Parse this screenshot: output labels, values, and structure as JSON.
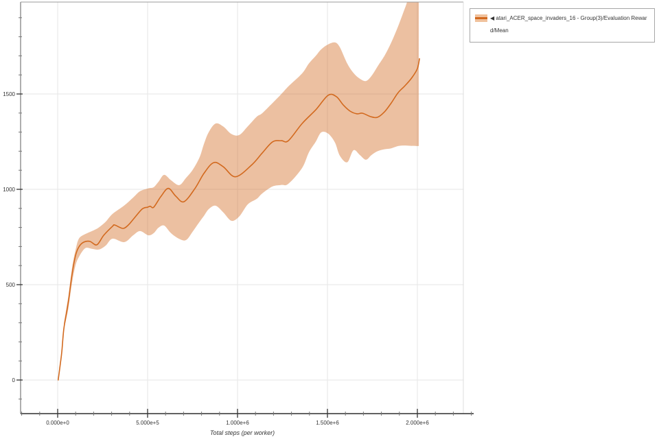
{
  "legend": {
    "label": "◀ atari_ACER_space_invaders_16 - Group(3)/Evaluation Reward/Mean"
  },
  "chart_data": {
    "type": "line",
    "title": "",
    "xlabel": "Total steps (per worker)",
    "ylabel": "",
    "xlim": [
      -206000,
      2256000
    ],
    "ylim": [
      -176,
      1975
    ],
    "grid": true,
    "legend_position": "outside top-right",
    "x_ticks": {
      "values": [
        0,
        500000,
        1000000,
        1500000,
        2000000
      ],
      "labels": [
        "0.000e+0",
        "5.000e+5",
        "1.000e+6",
        "1.500e+6",
        "2.000e+6"
      ],
      "minor_step": 100000,
      "minor_range": [
        -200000,
        2300000
      ]
    },
    "y_ticks": {
      "values": [
        0,
        500,
        1000,
        1500
      ],
      "labels": [
        "0",
        "500",
        "1000",
        "1500"
      ],
      "minor_step": 100,
      "minor_range": [
        -100,
        1900
      ]
    },
    "series": [
      {
        "name": "atari_ACER_space_invaders_16 - Group(3)/Evaluation Reward/Mean",
        "color": "#d2691e",
        "band_color": "rgba(210,105,30,0.42)",
        "x": [
          3000,
          15000,
          23000,
          34000,
          50000,
          61000,
          80000,
          99000,
          118000,
          145000,
          179000,
          218000,
          256000,
          305000,
          317000,
          363000,
          393000,
          420000,
          469000,
          500000,
          515000,
          534000,
          573000,
          615000,
          657000,
          702000,
          763000,
          813000,
          867000,
          920000,
          989000,
          1080000,
          1137000,
          1195000,
          1244000,
          1283000,
          1359000,
          1435000,
          1504000,
          1550000,
          1588000,
          1626000,
          1664000,
          1695000,
          1741000,
          1779000,
          1817000,
          1855000,
          1893000,
          1931000,
          1970000,
          2000000,
          2012000
        ],
        "mean": [
          0,
          86,
          147,
          266,
          356,
          421,
          554,
          651,
          698,
          723,
          727,
          709,
          759,
          806,
          813,
          795,
          813,
          842,
          896,
          906,
          911,
          906,
          961,
          1005,
          964,
          935,
          1004,
          1083,
          1140,
          1119,
          1066,
          1129,
          1190,
          1249,
          1255,
          1255,
          1345,
          1417,
          1493,
          1486,
          1442,
          1410,
          1396,
          1399,
          1381,
          1378,
          1406,
          1453,
          1507,
          1543,
          1586,
          1633,
          1685
        ],
        "band": {
          "x": [
            35000,
            50000,
            61000,
            80000,
            99000,
            118000,
            153000,
            191000,
            229000,
            267000,
            305000,
            370000,
            420000,
            458000,
            504000,
            534000,
            561000,
            592000,
            630000,
            676000,
            714000,
            752000,
            790000,
            813000,
            840000,
            878000,
            920000,
            966000,
            1010000,
            1057000,
            1107000,
            1137000,
            1195000,
            1244000,
            1283000,
            1359000,
            1397000,
            1435000,
            1466000,
            1504000,
            1542000,
            1569000,
            1610000,
            1645000,
            1680000,
            1714000,
            1745000,
            1779000,
            1817000,
            1855000,
            1893000,
            1931000,
            1965000,
            2008000
          ],
          "lower": [
            270,
            330,
            385,
            510,
            600,
            645,
            691,
            688,
            684,
            705,
            741,
            723,
            759,
            781,
            759,
            770,
            799,
            810,
            770,
            740,
            734,
            780,
            831,
            860,
            896,
            914,
            880,
            835,
            858,
            921,
            950,
            978,
            1015,
            1023,
            1029,
            1112,
            1194,
            1250,
            1299,
            1292,
            1245,
            1176,
            1142,
            1205,
            1180,
            1155,
            1180,
            1200,
            1210,
            1215,
            1227,
            1230,
            1228,
            1227
          ],
          "upper": [
            300,
            385,
            450,
            590,
            680,
            741,
            765,
            781,
            800,
            830,
            871,
            915,
            957,
            990,
            1005,
            1011,
            1040,
            1076,
            1048,
            1022,
            1060,
            1104,
            1170,
            1237,
            1300,
            1345,
            1330,
            1290,
            1285,
            1330,
            1381,
            1399,
            1453,
            1500,
            1540,
            1608,
            1660,
            1700,
            1735,
            1760,
            1770,
            1745,
            1660,
            1610,
            1580,
            1568,
            1595,
            1645,
            1700,
            1770,
            1855,
            1950,
            2030,
            2030
          ]
        }
      }
    ]
  }
}
